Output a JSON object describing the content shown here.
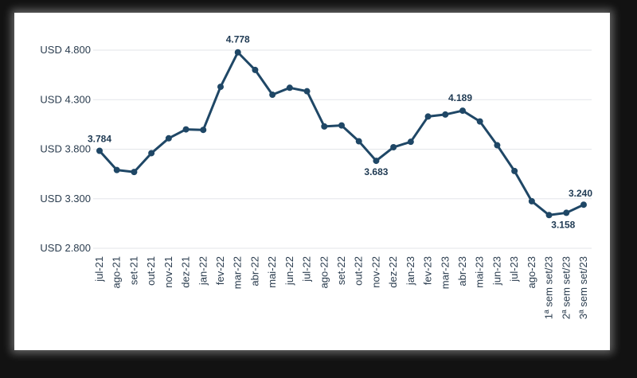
{
  "chart_data": {
    "type": "line",
    "title": "",
    "xlabel": "",
    "ylabel": "",
    "ylim": [
      2800,
      4800
    ],
    "yticks": [
      2800,
      3300,
      3800,
      4300,
      4800
    ],
    "ytick_labels": [
      "USD 2.800",
      "USD 3.300",
      "USD 3.800",
      "USD 4.300",
      "USD 4.800"
    ],
    "categories": [
      "jul-21",
      "ago-21",
      "set-21",
      "out-21",
      "nov-21",
      "dez-21",
      "jan-22",
      "fev-22",
      "mar-22",
      "abr-22",
      "mai-22",
      "jun-22",
      "jul-22",
      "ago-22",
      "set-22",
      "out-22",
      "nov-22",
      "dez-22",
      "jan-23",
      "fev-23",
      "mar-23",
      "abr-23",
      "mai-23",
      "jun-23",
      "jul-23",
      "ago-23",
      "1ª sem set/23",
      "2ª sem set/23",
      "3ª sem set/23"
    ],
    "series": [
      {
        "values": [
          3784,
          3590,
          3570,
          3760,
          3910,
          4000,
          3995,
          4430,
          4778,
          4600,
          4350,
          4420,
          4385,
          4030,
          4040,
          3880,
          3683,
          3820,
          3875,
          4130,
          4150,
          4189,
          4080,
          3840,
          3580,
          3275,
          3135,
          3158,
          3240
        ],
        "data_labels": {
          "0": "3.784",
          "8": "4.778",
          "16": "3.683",
          "21": "4.189",
          "27": "3.158",
          "28": "3.240"
        },
        "color": "#1f4766"
      }
    ],
    "grid": true,
    "legend": "none"
  }
}
